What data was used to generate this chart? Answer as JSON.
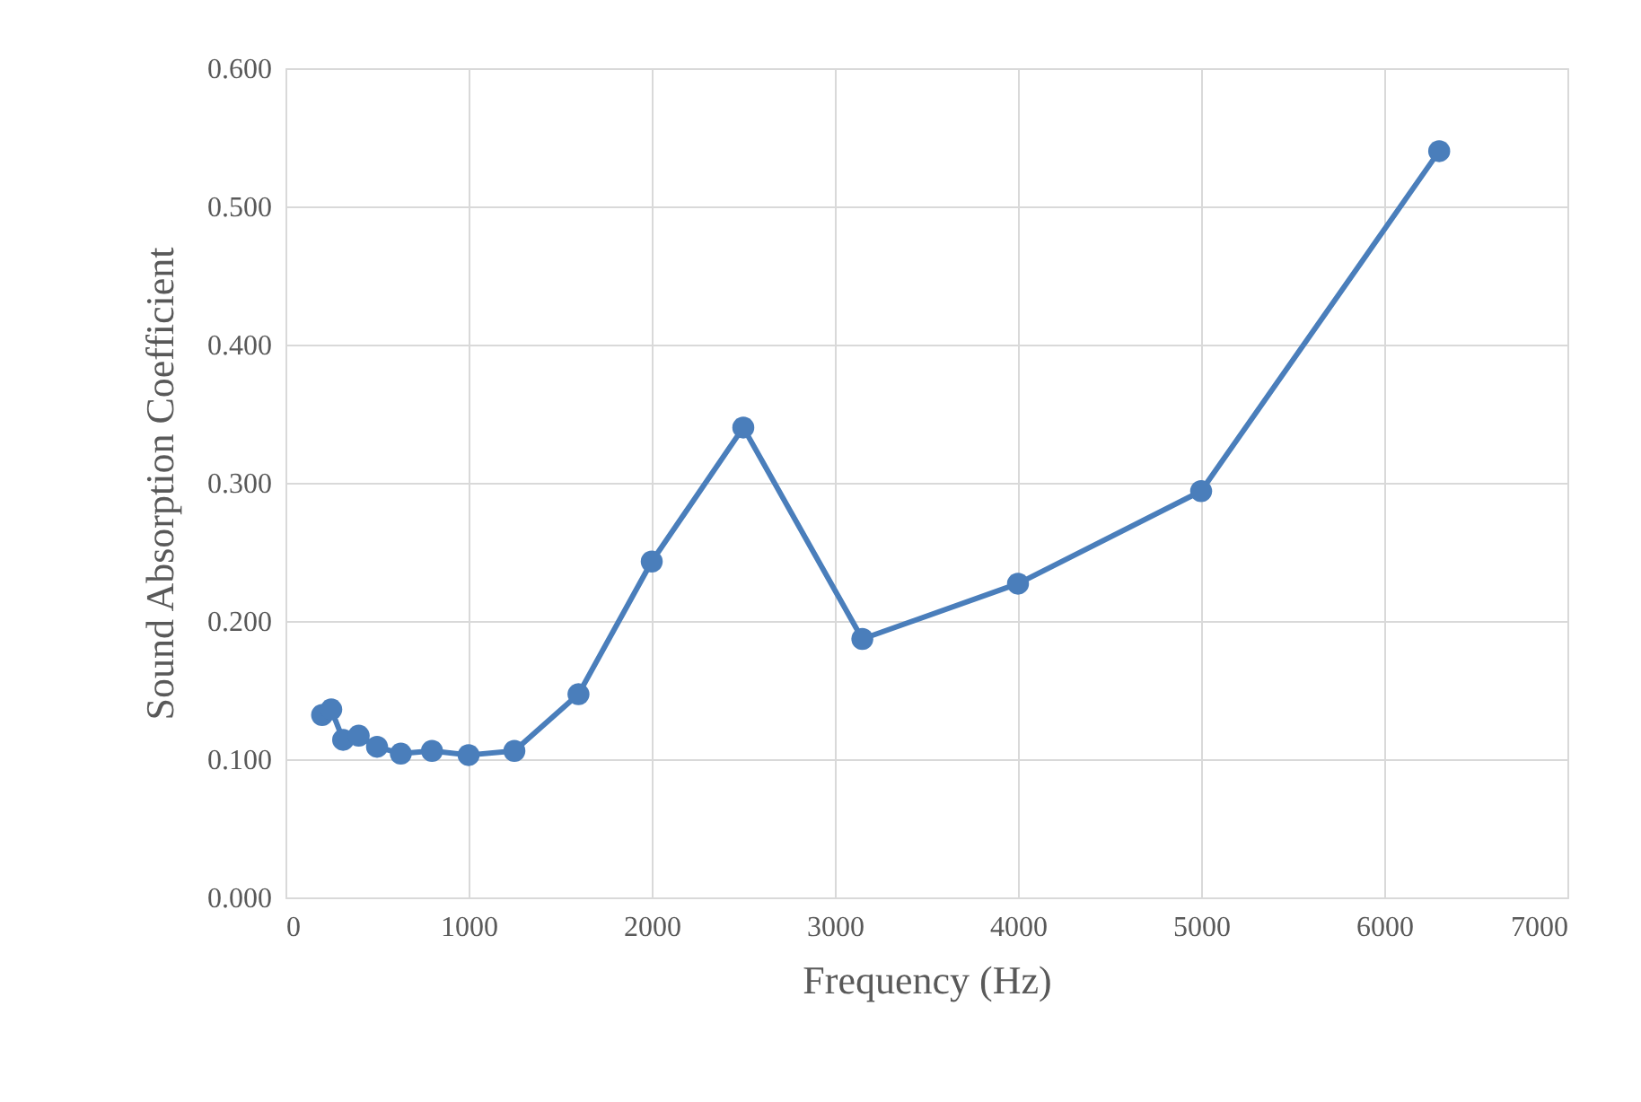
{
  "chart_data": {
    "type": "line",
    "xlabel": "Frequency (Hz)",
    "ylabel": "Sound Absorption Coefficient",
    "x": [
      200,
      250,
      315,
      400,
      500,
      630,
      800,
      1000,
      1250,
      1600,
      2000,
      2500,
      3150,
      4000,
      5000,
      6300
    ],
    "series": [
      {
        "color": "#4a7ebb",
        "values": [
          0.132,
          0.136,
          0.114,
          0.117,
          0.109,
          0.104,
          0.106,
          0.103,
          0.106,
          0.147,
          0.243,
          0.34,
          0.187,
          0.227,
          0.294,
          0.54
        ]
      }
    ],
    "xlim": [
      0,
      7000
    ],
    "xticks": [
      0,
      1000,
      2000,
      3000,
      4000,
      5000,
      6000,
      7000
    ],
    "ylim": [
      0,
      0.6
    ],
    "yticks": [
      {
        "value": 0,
        "label": "0.000"
      },
      {
        "value": 0.1,
        "label": "0.100"
      },
      {
        "value": 0.2,
        "label": "0.200"
      },
      {
        "value": 0.3,
        "label": "0.300"
      },
      {
        "value": 0.4,
        "label": "0.400"
      },
      {
        "value": 0.5,
        "label": "0.500"
      },
      {
        "value": 0.6,
        "label": "0.600"
      }
    ],
    "grid": true,
    "marker": "circle",
    "line_style": "solid"
  }
}
